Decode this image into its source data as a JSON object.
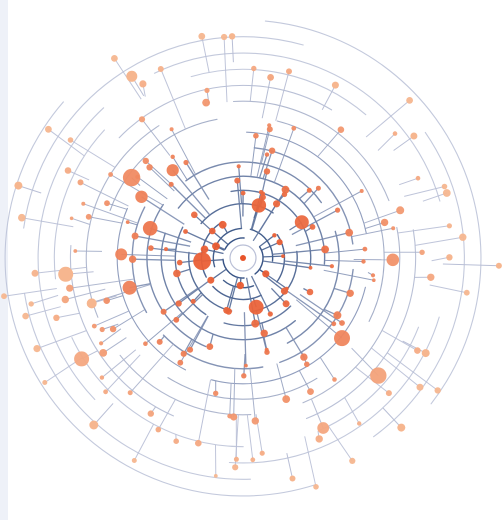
{
  "diagram": {
    "type": "radial-tree",
    "palette": {
      "inner_links": "#2c4a7e",
      "outer_links": "#b9bfd6",
      "inner_nodes": "#e8542a",
      "outer_nodes": "#f6b68f",
      "page_margin": "#eef1f8",
      "background": "#ffffff"
    },
    "rings": 16,
    "node_count": 180,
    "labels_visible": false
  }
}
